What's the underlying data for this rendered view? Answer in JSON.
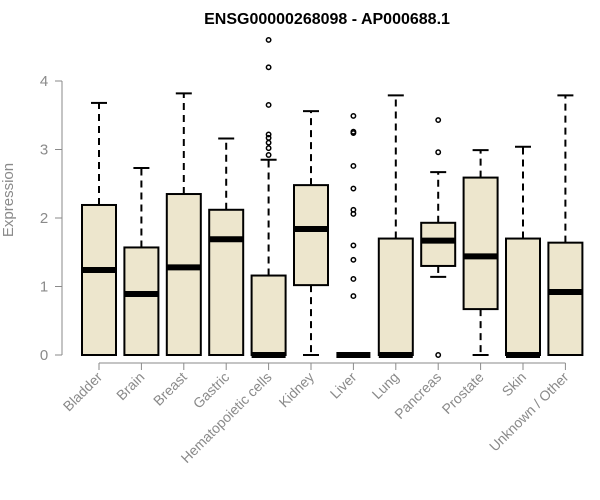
{
  "chart_data": {
    "type": "box",
    "title": "ENSG00000268098 - AP000688.1",
    "ylabel": "Expression",
    "ylim": [
      0,
      4.5
    ],
    "yticks": [
      0,
      1,
      2,
      3,
      4
    ],
    "categories": [
      "Bladder",
      "Brain",
      "Breast",
      "Gastric",
      "Hematopoietic cells",
      "Kidney",
      "Liver",
      "Lung",
      "Pancreas",
      "Prostate",
      "Skin",
      "Unknown / Other"
    ],
    "boxes": [
      {
        "name": "Bladder",
        "min": 0,
        "q1": 0,
        "median": 1.24,
        "q3": 2.19,
        "max": 3.68,
        "outliers": []
      },
      {
        "name": "Brain",
        "min": 0,
        "q1": 0,
        "median": 0.89,
        "q3": 1.57,
        "max": 2.73,
        "outliers": []
      },
      {
        "name": "Breast",
        "min": 0,
        "q1": 0,
        "median": 1.28,
        "q3": 2.35,
        "max": 3.82,
        "outliers": []
      },
      {
        "name": "Gastric",
        "min": 0,
        "q1": 0,
        "median": 1.69,
        "q3": 2.12,
        "max": 3.16,
        "outliers": []
      },
      {
        "name": "Hematopoietic cells",
        "min": 0,
        "q1": 0,
        "median": 0,
        "q3": 1.16,
        "max": 2.85,
        "outliers": [
          4.6,
          4.2,
          3.65,
          3.22,
          3.17,
          3.1,
          3.02,
          2.92
        ]
      },
      {
        "name": "Kidney",
        "min": 0,
        "q1": 1.02,
        "median": 1.84,
        "q3": 2.48,
        "max": 3.56,
        "outliers": []
      },
      {
        "name": "Liver",
        "min": 0,
        "q1": 0,
        "median": 0,
        "q3": 0,
        "max": 0,
        "outliers": [
          3.49,
          3.26,
          3.24,
          2.76,
          2.43,
          2.12,
          2.06,
          1.6,
          1.39,
          1.11,
          0.86
        ]
      },
      {
        "name": "Lung",
        "min": 0,
        "q1": 0,
        "median": 0,
        "q3": 1.7,
        "max": 3.79,
        "outliers": []
      },
      {
        "name": "Pancreas",
        "min": 1.14,
        "q1": 1.3,
        "median": 1.67,
        "q3": 1.93,
        "max": 2.67,
        "outliers": [
          3.43,
          2.96,
          0
        ]
      },
      {
        "name": "Prostate",
        "min": 0,
        "q1": 0.67,
        "median": 1.44,
        "q3": 2.59,
        "max": 2.99,
        "outliers": []
      },
      {
        "name": "Skin",
        "min": 0,
        "q1": 0,
        "median": 0,
        "q3": 1.7,
        "max": 3.04,
        "outliers": []
      },
      {
        "name": "Unknown / Other",
        "min": 0,
        "q1": 0,
        "median": 0.92,
        "q3": 1.64,
        "max": 3.79,
        "outliers": []
      }
    ],
    "box_fill": "#ede6cd",
    "axis_color": "#8a8a8a",
    "grid": false,
    "legend": "none"
  }
}
